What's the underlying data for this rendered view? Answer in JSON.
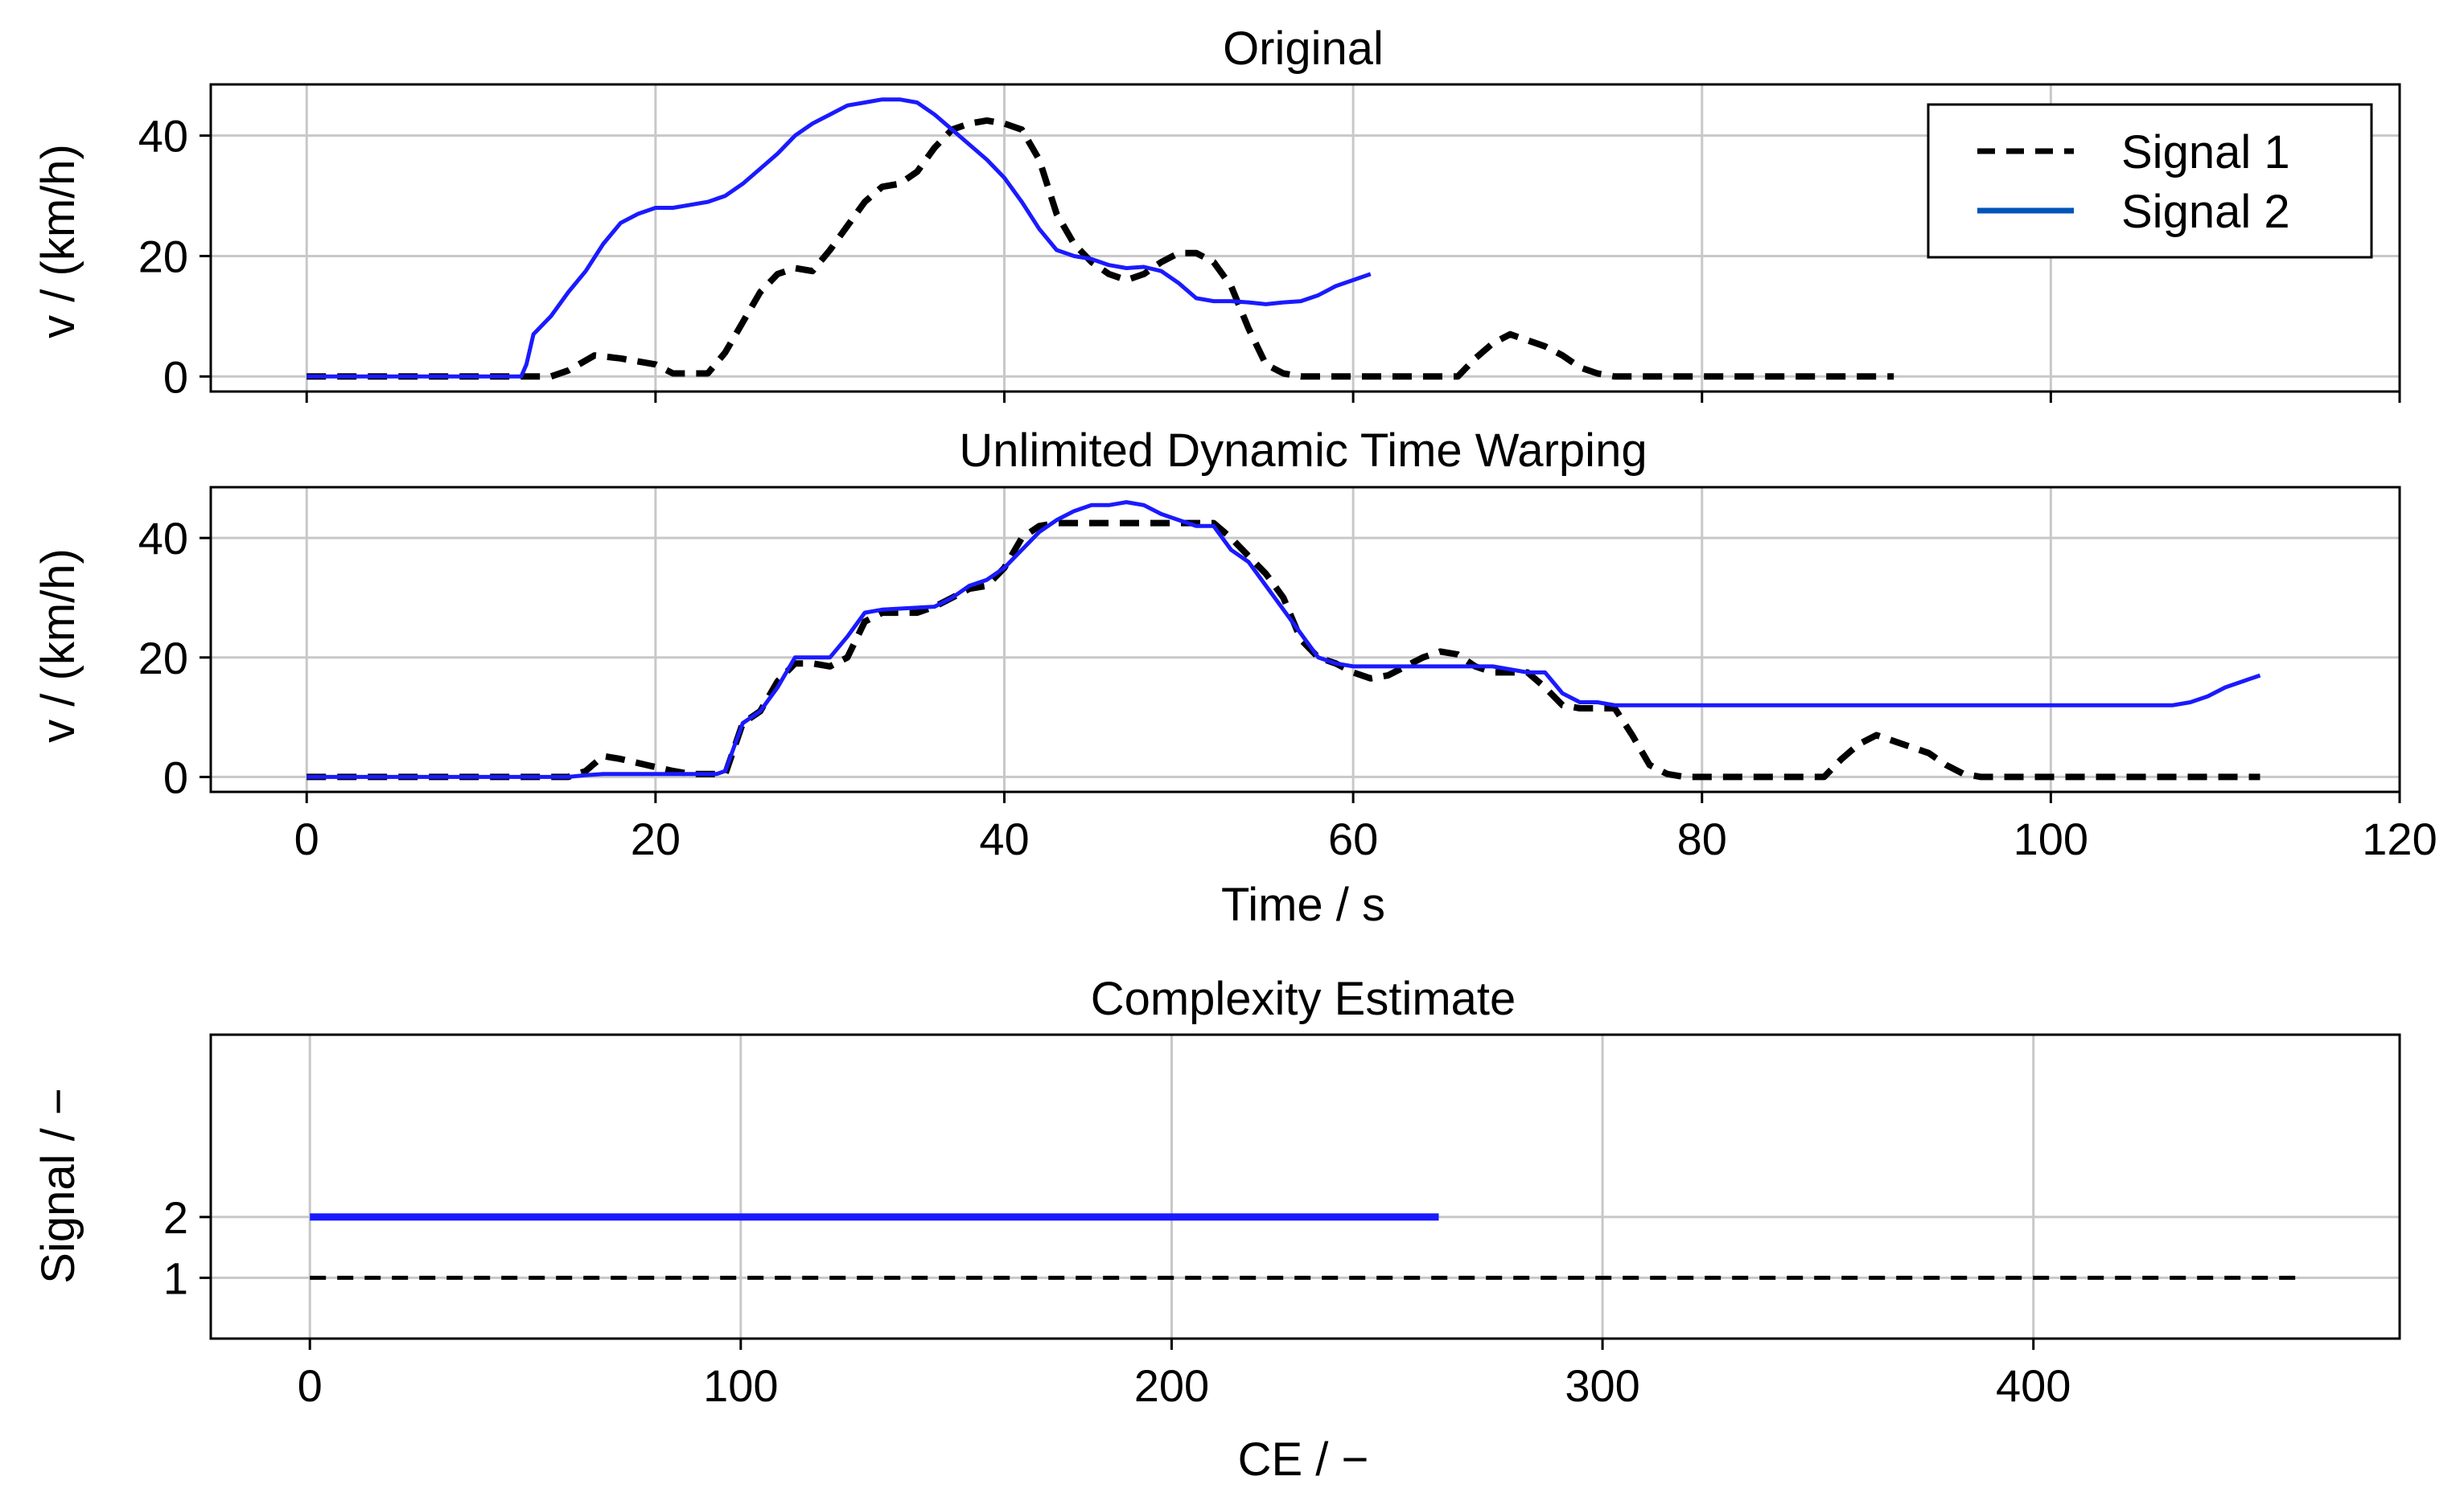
{
  "colors": {
    "signal1": "#000000",
    "signal2": "#1a1aff",
    "legend_signal2": "#0055b8",
    "grid": "#c8c8c8"
  },
  "chart_data": [
    {
      "id": "original",
      "type": "line",
      "title": "Original",
      "xlabel": "",
      "ylabel": "v / (km/h)",
      "xlim": [
        -5.5,
        120
      ],
      "ylim": [
        -2.5,
        48.5
      ],
      "xticks": [
        0,
        20,
        40,
        60,
        80,
        100,
        120
      ],
      "yticks": [
        0,
        20,
        40
      ],
      "show_xticklabels": false,
      "grid": true,
      "legend": {
        "placement": "top-right",
        "entries": [
          "Signal 1",
          "Signal 2"
        ]
      },
      "series": [
        {
          "name": "Signal 1",
          "style": "dashed",
          "color": "#000000",
          "points": [
            [
              0,
              0
            ],
            [
              14,
              0
            ],
            [
              15,
              1
            ],
            [
              16.5,
              3.5
            ],
            [
              18,
              3
            ],
            [
              20,
              2
            ],
            [
              21,
              0.5
            ],
            [
              23,
              0.5
            ],
            [
              24,
              4
            ],
            [
              25,
              9
            ],
            [
              26,
              14
            ],
            [
              27,
              17
            ],
            [
              28,
              18
            ],
            [
              29,
              17.5
            ],
            [
              30,
              21
            ],
            [
              31,
              25
            ],
            [
              32,
              29
            ],
            [
              33,
              31.5
            ],
            [
              34,
              32
            ],
            [
              35,
              34
            ],
            [
              36,
              38
            ],
            [
              37,
              41
            ],
            [
              38,
              42
            ],
            [
              39,
              42.5
            ],
            [
              40,
              42
            ],
            [
              41,
              41
            ],
            [
              42,
              36
            ],
            [
              43,
              27
            ],
            [
              44,
              22
            ],
            [
              45,
              19
            ],
            [
              46,
              17
            ],
            [
              47,
              16
            ],
            [
              48,
              17
            ],
            [
              49,
              19
            ],
            [
              50,
              20.5
            ],
            [
              51,
              20.5
            ],
            [
              52,
              19
            ],
            [
              53,
              15
            ],
            [
              54,
              8
            ],
            [
              55,
              2
            ],
            [
              56,
              0.5
            ],
            [
              57,
              0
            ],
            [
              66,
              0
            ],
            [
              67,
              3
            ],
            [
              68,
              5.5
            ],
            [
              69,
              7
            ],
            [
              70,
              6
            ],
            [
              71,
              5
            ],
            [
              72,
              3.5
            ],
            [
              73,
              1.5
            ],
            [
              74,
              0.5
            ],
            [
              75,
              0
            ],
            [
              91,
              0
            ]
          ]
        },
        {
          "name": "Signal 2",
          "style": "solid",
          "color": "#1a1aff",
          "points": [
            [
              0,
              0
            ],
            [
              12.3,
              0
            ],
            [
              12.6,
              2
            ],
            [
              13,
              7
            ],
            [
              14,
              10
            ],
            [
              15,
              14
            ],
            [
              16,
              17.5
            ],
            [
              17,
              22
            ],
            [
              18,
              25.5
            ],
            [
              19,
              27
            ],
            [
              20,
              28
            ],
            [
              21,
              28
            ],
            [
              22,
              28.5
            ],
            [
              23,
              29
            ],
            [
              24,
              30
            ],
            [
              25,
              32
            ],
            [
              26,
              34.5
            ],
            [
              27,
              37
            ],
            [
              28,
              40
            ],
            [
              29,
              42
            ],
            [
              30,
              43.5
            ],
            [
              31,
              45
            ],
            [
              32,
              45.5
            ],
            [
              33,
              46
            ],
            [
              34,
              46
            ],
            [
              35,
              45.5
            ],
            [
              36,
              43.5
            ],
            [
              37,
              41
            ],
            [
              38,
              38.5
            ],
            [
              39,
              36
            ],
            [
              40,
              33
            ],
            [
              41,
              29
            ],
            [
              42,
              24.5
            ],
            [
              43,
              21
            ],
            [
              44,
              20
            ],
            [
              45,
              19.5
            ],
            [
              46,
              18.5
            ],
            [
              47,
              18
            ],
            [
              48,
              18.2
            ],
            [
              49,
              17.5
            ],
            [
              50,
              15.5
            ],
            [
              51,
              13
            ],
            [
              52,
              12.5
            ],
            [
              53,
              12.5
            ],
            [
              54,
              12.3
            ],
            [
              55,
              12
            ],
            [
              56,
              12.3
            ],
            [
              57,
              12.5
            ],
            [
              58,
              13.5
            ],
            [
              59,
              15
            ],
            [
              60,
              16
            ],
            [
              61,
              17
            ]
          ]
        }
      ]
    },
    {
      "id": "udtw",
      "type": "line",
      "title": "Unlimited Dynamic Time Warping",
      "xlabel": "Time / s",
      "ylabel": "v / (km/h)",
      "xlim": [
        -5.5,
        120
      ],
      "ylim": [
        -2.5,
        48.5
      ],
      "xticks": [
        0,
        20,
        40,
        60,
        80,
        100,
        120
      ],
      "yticks": [
        0,
        20,
        40
      ],
      "show_xticklabels": true,
      "grid": true,
      "series": [
        {
          "name": "Signal 1",
          "style": "dashed",
          "color": "#000000",
          "points": [
            [
              0,
              0
            ],
            [
              15,
              0
            ],
            [
              16,
              1
            ],
            [
              17,
              3.5
            ],
            [
              18,
              3
            ],
            [
              19.5,
              2
            ],
            [
              21,
              1
            ],
            [
              22,
              0.5
            ],
            [
              24,
              0.5
            ],
            [
              25,
              9
            ],
            [
              26,
              11
            ],
            [
              27,
              16
            ],
            [
              28,
              19
            ],
            [
              29,
              19
            ],
            [
              30,
              18.5
            ],
            [
              31,
              20
            ],
            [
              32,
              26
            ],
            [
              33,
              27.5
            ],
            [
              34,
              27.5
            ],
            [
              35,
              27.5
            ],
            [
              36,
              28.5
            ],
            [
              37,
              30
            ],
            [
              38,
              31.5
            ],
            [
              39,
              32
            ],
            [
              40,
              35
            ],
            [
              41,
              40
            ],
            [
              42,
              42
            ],
            [
              43,
              42.5
            ],
            [
              52,
              42.5
            ],
            [
              53,
              40
            ],
            [
              54,
              37
            ],
            [
              55,
              34
            ],
            [
              56,
              30
            ],
            [
              57,
              23
            ],
            [
              58,
              20
            ],
            [
              59,
              19
            ],
            [
              60,
              17.5
            ],
            [
              61,
              16.5
            ],
            [
              62,
              17
            ],
            [
              63,
              18.5
            ],
            [
              64,
              20
            ],
            [
              65,
              21
            ],
            [
              66,
              20.5
            ],
            [
              67,
              18.5
            ],
            [
              68,
              17.5
            ],
            [
              70,
              17.5
            ],
            [
              71,
              15
            ],
            [
              72,
              12
            ],
            [
              73,
              11.5
            ],
            [
              75,
              11.5
            ],
            [
              76,
              7
            ],
            [
              77,
              2
            ],
            [
              78,
              0.5
            ],
            [
              79,
              0
            ],
            [
              87,
              0
            ],
            [
              88,
              3
            ],
            [
              89,
              5.5
            ],
            [
              90,
              7
            ],
            [
              91,
              6
            ],
            [
              92,
              5
            ],
            [
              93,
              4
            ],
            [
              94,
              2
            ],
            [
              95,
              0.5
            ],
            [
              96,
              0
            ],
            [
              112,
              0
            ]
          ]
        },
        {
          "name": "Signal 2",
          "style": "solid",
          "color": "#1a1aff",
          "points": [
            [
              0,
              0
            ],
            [
              15,
              0
            ],
            [
              16,
              0.3
            ],
            [
              17,
              0.5
            ],
            [
              23.5,
              0.5
            ],
            [
              24,
              1
            ],
            [
              24.5,
              5
            ],
            [
              25,
              9
            ],
            [
              26,
              11
            ],
            [
              27,
              15
            ],
            [
              28,
              20
            ],
            [
              30,
              20
            ],
            [
              31,
              23.5
            ],
            [
              32,
              27.5
            ],
            [
              33,
              28
            ],
            [
              36,
              28.5
            ],
            [
              37,
              30
            ],
            [
              38,
              32
            ],
            [
              39,
              33
            ],
            [
              40,
              35
            ],
            [
              41,
              38
            ],
            [
              42,
              41
            ],
            [
              43,
              43
            ],
            [
              44,
              44.5
            ],
            [
              45,
              45.5
            ],
            [
              46,
              45.5
            ],
            [
              47,
              46
            ],
            [
              48,
              45.5
            ],
            [
              49,
              44
            ],
            [
              50,
              43
            ],
            [
              51,
              42
            ],
            [
              52,
              42
            ],
            [
              53,
              38
            ],
            [
              54,
              36
            ],
            [
              55,
              32
            ],
            [
              56,
              28
            ],
            [
              57,
              24
            ],
            [
              58,
              20
            ],
            [
              59,
              19
            ],
            [
              60,
              18.5
            ],
            [
              68,
              18.5
            ],
            [
              70,
              17.5
            ],
            [
              71,
              17.5
            ],
            [
              72,
              14
            ],
            [
              73,
              12.5
            ],
            [
              74,
              12.5
            ],
            [
              75,
              12
            ],
            [
              107,
              12
            ],
            [
              108,
              12.5
            ],
            [
              109,
              13.5
            ],
            [
              110,
              15
            ],
            [
              111,
              16
            ],
            [
              112,
              17
            ]
          ]
        }
      ]
    },
    {
      "id": "ce",
      "type": "line",
      "title": "Complexity Estimate",
      "xlabel": "CE / −",
      "ylabel": "Signal / −",
      "xlim": [
        -23,
        485
      ],
      "ylim": [
        0,
        5
      ],
      "xticks": [
        0,
        100,
        200,
        300,
        400
      ],
      "yticks": [
        1,
        2
      ],
      "show_xticklabels": true,
      "grid": true,
      "series": [
        {
          "name": "Signal 1",
          "style": "dashed",
          "color": "#000000",
          "points": [
            [
              0,
              1
            ],
            [
              461,
              1
            ]
          ]
        },
        {
          "name": "Signal 2",
          "style": "solid",
          "color": "#1a1aff",
          "points": [
            [
              0,
              2
            ],
            [
              262,
              2
            ]
          ]
        }
      ]
    }
  ]
}
